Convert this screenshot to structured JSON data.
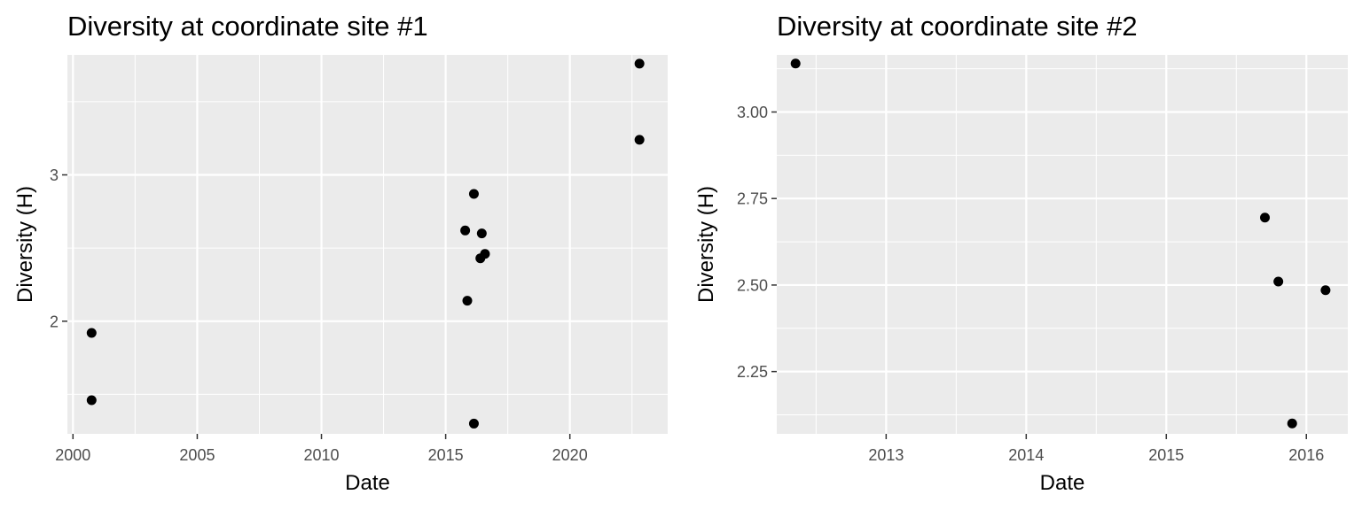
{
  "colors": {
    "panel_background": "#ebebeb",
    "grid_line": "#ffffff",
    "tick_text": "#4d4d4d",
    "tick_mark": "#333333",
    "point": "#000000"
  },
  "chart_data": [
    {
      "type": "scatter",
      "title": "Diversity at coordinate site #1",
      "xlabel": "Date",
      "ylabel": "Diversity (H)",
      "x_type": "date",
      "xlim": [
        "1999-10-11",
        "2023-12-09"
      ],
      "ylim": [
        1.23,
        3.82
      ],
      "x_ticks": [
        {
          "label": "2000",
          "value": "2000-01-01"
        },
        {
          "label": "2005",
          "value": "2005-01-01"
        },
        {
          "label": "2010",
          "value": "2010-01-01"
        },
        {
          "label": "2015",
          "value": "2015-01-01"
        },
        {
          "label": "2020",
          "value": "2020-01-01"
        }
      ],
      "y_ticks": [
        {
          "label": "2",
          "value": 2
        },
        {
          "label": "3",
          "value": 3
        }
      ],
      "grid": true,
      "points": [
        {
          "x": "2000-10-01",
          "y": 1.92
        },
        {
          "x": "2000-10-01",
          "y": 1.46
        },
        {
          "x": "2015-10-15",
          "y": 2.62
        },
        {
          "x": "2015-11-15",
          "y": 2.14
        },
        {
          "x": "2016-02-20",
          "y": 2.87
        },
        {
          "x": "2016-02-20",
          "y": 1.3
        },
        {
          "x": "2016-05-25",
          "y": 2.43
        },
        {
          "x": "2016-06-15",
          "y": 2.6
        },
        {
          "x": "2016-08-01",
          "y": 2.46
        },
        {
          "x": "2022-10-20",
          "y": 3.76
        },
        {
          "x": "2022-10-20",
          "y": 3.24
        }
      ]
    },
    {
      "type": "scatter",
      "title": "Diversity at coordinate site #2",
      "xlabel": "Date",
      "ylabel": "Diversity (H)",
      "x_type": "date",
      "xlim": [
        "2012-03-22",
        "2016-04-18"
      ],
      "ylim": [
        2.07,
        3.165
      ],
      "x_ticks": [
        {
          "label": "2013",
          "value": "2013-01-01"
        },
        {
          "label": "2014",
          "value": "2014-01-01"
        },
        {
          "label": "2015",
          "value": "2015-01-01"
        },
        {
          "label": "2016",
          "value": "2016-01-01"
        }
      ],
      "y_ticks": [
        {
          "label": "2.25",
          "value": 2.25
        },
        {
          "label": "2.50",
          "value": 2.5
        },
        {
          "label": "2.75",
          "value": 2.75
        },
        {
          "label": "3.00",
          "value": 3.0
        }
      ],
      "grid": true,
      "points": [
        {
          "x": "2012-05-10",
          "y": 3.14
        },
        {
          "x": "2015-09-15",
          "y": 2.695
        },
        {
          "x": "2015-10-20",
          "y": 2.51
        },
        {
          "x": "2015-11-25",
          "y": 2.1
        },
        {
          "x": "2016-02-20",
          "y": 2.485
        }
      ]
    }
  ]
}
